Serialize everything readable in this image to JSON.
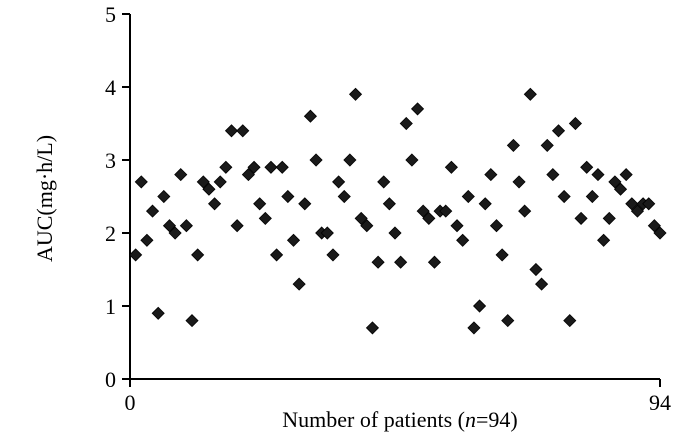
{
  "chart_data": {
    "type": "scatter",
    "title": "",
    "xlabel": "Number of patients (",
    "xlabel_var": "n",
    "xlabel_suffix": "=94)",
    "ylabel": "AUC(mg·h/L)",
    "xlim": [
      0,
      94
    ],
    "ylim": [
      0,
      5
    ],
    "x_ticks": [
      0,
      94
    ],
    "x_tick_labels": [
      "0",
      "94"
    ],
    "y_ticks": [
      0,
      1,
      2,
      3,
      4,
      5
    ],
    "y_tick_labels": [
      "0",
      "1",
      "2",
      "3",
      "4",
      "5"
    ],
    "grid": false,
    "marker": "diamond",
    "marker_color": "#1a1a1a",
    "points": [
      {
        "x": 1,
        "y": 1.7
      },
      {
        "x": 2,
        "y": 2.7
      },
      {
        "x": 3,
        "y": 1.9
      },
      {
        "x": 4,
        "y": 2.3
      },
      {
        "x": 5,
        "y": 0.9
      },
      {
        "x": 6,
        "y": 2.5
      },
      {
        "x": 7,
        "y": 2.1
      },
      {
        "x": 8,
        "y": 2.0
      },
      {
        "x": 9,
        "y": 2.8
      },
      {
        "x": 10,
        "y": 2.1
      },
      {
        "x": 11,
        "y": 0.8
      },
      {
        "x": 12,
        "y": 1.7
      },
      {
        "x": 13,
        "y": 2.7
      },
      {
        "x": 14,
        "y": 2.6
      },
      {
        "x": 15,
        "y": 2.4
      },
      {
        "x": 16,
        "y": 2.7
      },
      {
        "x": 17,
        "y": 2.9
      },
      {
        "x": 18,
        "y": 3.4
      },
      {
        "x": 19,
        "y": 2.1
      },
      {
        "x": 20,
        "y": 3.4
      },
      {
        "x": 21,
        "y": 2.8
      },
      {
        "x": 22,
        "y": 2.9
      },
      {
        "x": 23,
        "y": 2.4
      },
      {
        "x": 24,
        "y": 2.2
      },
      {
        "x": 25,
        "y": 2.9
      },
      {
        "x": 26,
        "y": 1.7
      },
      {
        "x": 27,
        "y": 2.9
      },
      {
        "x": 28,
        "y": 2.5
      },
      {
        "x": 29,
        "y": 1.9
      },
      {
        "x": 30,
        "y": 1.3
      },
      {
        "x": 31,
        "y": 2.4
      },
      {
        "x": 32,
        "y": 3.6
      },
      {
        "x": 33,
        "y": 3.0
      },
      {
        "x": 34,
        "y": 2.0
      },
      {
        "x": 35,
        "y": 2.0
      },
      {
        "x": 36,
        "y": 1.7
      },
      {
        "x": 37,
        "y": 2.7
      },
      {
        "x": 38,
        "y": 2.5
      },
      {
        "x": 39,
        "y": 3.0
      },
      {
        "x": 40,
        "y": 3.9
      },
      {
        "x": 41,
        "y": 2.2
      },
      {
        "x": 42,
        "y": 2.1
      },
      {
        "x": 43,
        "y": 0.7
      },
      {
        "x": 44,
        "y": 1.6
      },
      {
        "x": 45,
        "y": 2.7
      },
      {
        "x": 46,
        "y": 2.4
      },
      {
        "x": 47,
        "y": 2.0
      },
      {
        "x": 48,
        "y": 1.6
      },
      {
        "x": 49,
        "y": 3.5
      },
      {
        "x": 50,
        "y": 3.0
      },
      {
        "x": 51,
        "y": 3.7
      },
      {
        "x": 52,
        "y": 2.3
      },
      {
        "x": 53,
        "y": 2.2
      },
      {
        "x": 54,
        "y": 1.6
      },
      {
        "x": 55,
        "y": 2.3
      },
      {
        "x": 56,
        "y": 2.3
      },
      {
        "x": 57,
        "y": 2.9
      },
      {
        "x": 58,
        "y": 2.1
      },
      {
        "x": 59,
        "y": 1.9
      },
      {
        "x": 60,
        "y": 2.5
      },
      {
        "x": 61,
        "y": 0.7
      },
      {
        "x": 62,
        "y": 1.0
      },
      {
        "x": 63,
        "y": 2.4
      },
      {
        "x": 64,
        "y": 2.8
      },
      {
        "x": 65,
        "y": 2.1
      },
      {
        "x": 66,
        "y": 1.7
      },
      {
        "x": 67,
        "y": 0.8
      },
      {
        "x": 68,
        "y": 3.2
      },
      {
        "x": 69,
        "y": 2.7
      },
      {
        "x": 70,
        "y": 2.3
      },
      {
        "x": 71,
        "y": 3.9
      },
      {
        "x": 72,
        "y": 1.5
      },
      {
        "x": 73,
        "y": 1.3
      },
      {
        "x": 74,
        "y": 3.2
      },
      {
        "x": 75,
        "y": 2.8
      },
      {
        "x": 76,
        "y": 3.4
      },
      {
        "x": 77,
        "y": 2.5
      },
      {
        "x": 78,
        "y": 0.8
      },
      {
        "x": 79,
        "y": 3.5
      },
      {
        "x": 80,
        "y": 2.2
      },
      {
        "x": 81,
        "y": 2.9
      },
      {
        "x": 82,
        "y": 2.5
      },
      {
        "x": 83,
        "y": 2.8
      },
      {
        "x": 84,
        "y": 1.9
      },
      {
        "x": 85,
        "y": 2.2
      },
      {
        "x": 86,
        "y": 2.7
      },
      {
        "x": 87,
        "y": 2.6
      },
      {
        "x": 88,
        "y": 2.8
      },
      {
        "x": 89,
        "y": 2.4
      },
      {
        "x": 90,
        "y": 2.3
      },
      {
        "x": 91,
        "y": 2.4
      },
      {
        "x": 92,
        "y": 2.4
      },
      {
        "x": 93,
        "y": 2.1
      },
      {
        "x": 94,
        "y": 2.0
      }
    ]
  }
}
